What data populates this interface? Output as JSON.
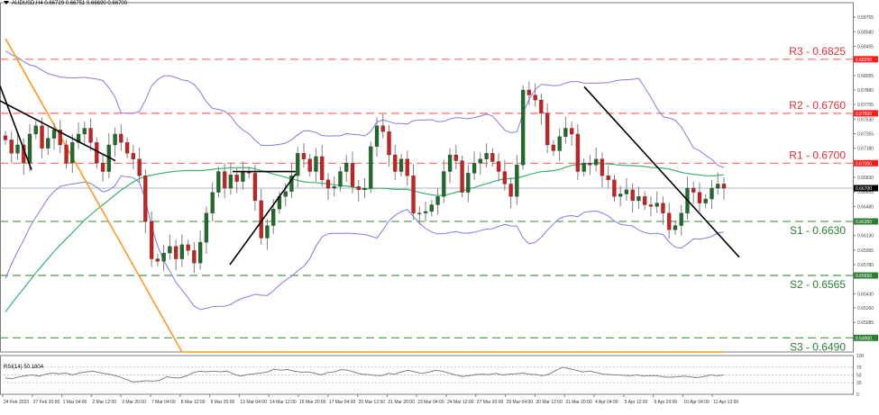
{
  "window": {
    "symbol_header": "AUDUSD,H4 0.66729 0.66751 0.66690 0.66700",
    "rsi_label": "RSI(14) 50.1804"
  },
  "colors": {
    "bull_candle": "#1f6b2a",
    "bear_candle": "#cc1f1f",
    "wick": "#808080",
    "bollinger": "#7b7fe0",
    "ma_fast": "#3cb371",
    "ma_slow": "#ff9a1f",
    "resistance": "#ff6b6b",
    "support": "#4a9a4a",
    "trendline": "#000000",
    "current_price_line": "#a8b3c4",
    "rsi_line": "#808080"
  },
  "chart_data": [
    {
      "type": "candlestick",
      "title": "AUDUSD,H4",
      "ohlc_header": {
        "open": 0.66729,
        "high": 0.66751,
        "low": 0.6669,
        "close": 0.667
      },
      "x_tick_labels": [
        "24 Feb 2023",
        "27 Feb 20:00",
        "1 Mar 04:00",
        "2 Mar 12:00",
        "3 Mar 20:00",
        "7 Mar 04:00",
        "8 Mar 12:00",
        "9 Mar 20:00",
        "13 Mar 04:00",
        "14 Mar 12:00",
        "15 Mar 20:00",
        "17 Mar 04:00",
        "20 Mar 12:00",
        "21 Mar 20:00",
        "23 Mar 04:00",
        "24 Mar 12:00",
        "27 Mar 20:00",
        "29 Mar 04:00",
        "30 Mar 12:00",
        "31 Mar 20:00",
        "4 Apr 04:00",
        "5 Apr 12:00",
        "6 Apr 20:00",
        "10 Apr 04:00",
        "11 Apr 12:00"
      ],
      "y_tick_labels": [
        "0.68755",
        "0.68580",
        "0.68405",
        "0.68055",
        "0.67880",
        "0.67705",
        "0.67530",
        "0.67355",
        "0.67180",
        "0.66830",
        "0.66655",
        "0.66480",
        "0.66130",
        "0.65955",
        "0.65780",
        "0.65430",
        "0.65260",
        "0.65085",
        "0.64735"
      ],
      "ylim": [
        0.6473,
        0.6893
      ],
      "levels": [
        {
          "name": "R3",
          "label": "R3 - 0.6825",
          "value": 0.6825,
          "badge": "0.68250",
          "kind": "resistance"
        },
        {
          "name": "R2",
          "label": "R2 - 0.6760",
          "value": 0.676,
          "badge": "0.67600",
          "kind": "resistance"
        },
        {
          "name": "R1",
          "label": "R1 - 0.6700",
          "value": 0.67,
          "badge": "0.67000",
          "kind": "resistance"
        },
        {
          "name": "S1",
          "label": "S1 - 0.6630",
          "value": 0.663,
          "badge": "0.66300",
          "kind": "support"
        },
        {
          "name": "S2",
          "label": "S2 - 0.6565",
          "value": 0.6565,
          "badge": "0.65650",
          "kind": "support"
        },
        {
          "name": "S3",
          "label": "S3 - 0.6490",
          "value": 0.649,
          "badge": "0.64900",
          "kind": "support"
        }
      ],
      "current_price": {
        "value": 0.667,
        "badge": "0.66700"
      },
      "close_series": [
        0.6728,
        0.6712,
        0.6722,
        0.67,
        0.6735,
        0.6745,
        0.6718,
        0.673,
        0.674,
        0.6722,
        0.67,
        0.6725,
        0.6735,
        0.6742,
        0.6725,
        0.67,
        0.669,
        0.6722,
        0.6735,
        0.6725,
        0.6712,
        0.6705,
        0.6685,
        0.663,
        0.6585,
        0.6582,
        0.6592,
        0.66,
        0.6585,
        0.6602,
        0.6595,
        0.658,
        0.6605,
        0.664,
        0.6665,
        0.669,
        0.667,
        0.6686,
        0.6678,
        0.669,
        0.6688,
        0.6655,
        0.661,
        0.6625,
        0.6645,
        0.666,
        0.6666,
        0.6685,
        0.6712,
        0.6705,
        0.669,
        0.6708,
        0.668,
        0.667,
        0.6672,
        0.669,
        0.67,
        0.6672,
        0.6668,
        0.667,
        0.672,
        0.6745,
        0.6738,
        0.671,
        0.669,
        0.6705,
        0.6685,
        0.664,
        0.664,
        0.6642,
        0.665,
        0.666,
        0.669,
        0.671,
        0.6703,
        0.6665,
        0.6688,
        0.67,
        0.6705,
        0.6712,
        0.6702,
        0.669,
        0.6675,
        0.666,
        0.6698,
        0.6788,
        0.6782,
        0.6776,
        0.676,
        0.6722,
        0.6715,
        0.6732,
        0.6742,
        0.6735,
        0.669,
        0.67,
        0.6698,
        0.6705,
        0.6685,
        0.668,
        0.666,
        0.6663,
        0.6668,
        0.6655,
        0.666,
        0.665,
        0.6648,
        0.6652,
        0.664,
        0.662,
        0.6625,
        0.664,
        0.667,
        0.6665,
        0.6652,
        0.6657,
        0.667,
        0.6675,
        0.667
      ],
      "indicators": [
        "Bollinger Bands (20)",
        "Moving Average (50)",
        "Moving Average (200)"
      ],
      "annotations": [
        "Descending trendlines",
        "Ascending wedge with horizontal top",
        "Support/Resistance dashed levels"
      ]
    },
    {
      "type": "line",
      "title": "RSI(14) 50.1804",
      "ylim": [
        0,
        100
      ],
      "y_tick_labels": [
        "100",
        "70",
        "50",
        "30",
        "0"
      ],
      "grid_levels": [
        70,
        50,
        30
      ],
      "last_value": 50.1804,
      "values": [
        42,
        40,
        45,
        48,
        50,
        47,
        52,
        55,
        53,
        55,
        50,
        55,
        58,
        60,
        56,
        53,
        50,
        45,
        38,
        32,
        33,
        35,
        34,
        36,
        45,
        43,
        42,
        48,
        56,
        60,
        58,
        60,
        58,
        60,
        52,
        47,
        51,
        53,
        55,
        58,
        65,
        62,
        64,
        60,
        57,
        58,
        55,
        50,
        56,
        58,
        64,
        62,
        57,
        52,
        51,
        49,
        48,
        54,
        52,
        58,
        62,
        58,
        54,
        57,
        62,
        60,
        55,
        50,
        46,
        48,
        51,
        52,
        51,
        54,
        50,
        52,
        53,
        55,
        52,
        51,
        48,
        52,
        62,
        70,
        66,
        62,
        58,
        60,
        56,
        52,
        51,
        50,
        49,
        48,
        50,
        47,
        48,
        48,
        45,
        44,
        45,
        47,
        45,
        43,
        46,
        50,
        48,
        50
      ],
      "grid": true
    }
  ]
}
